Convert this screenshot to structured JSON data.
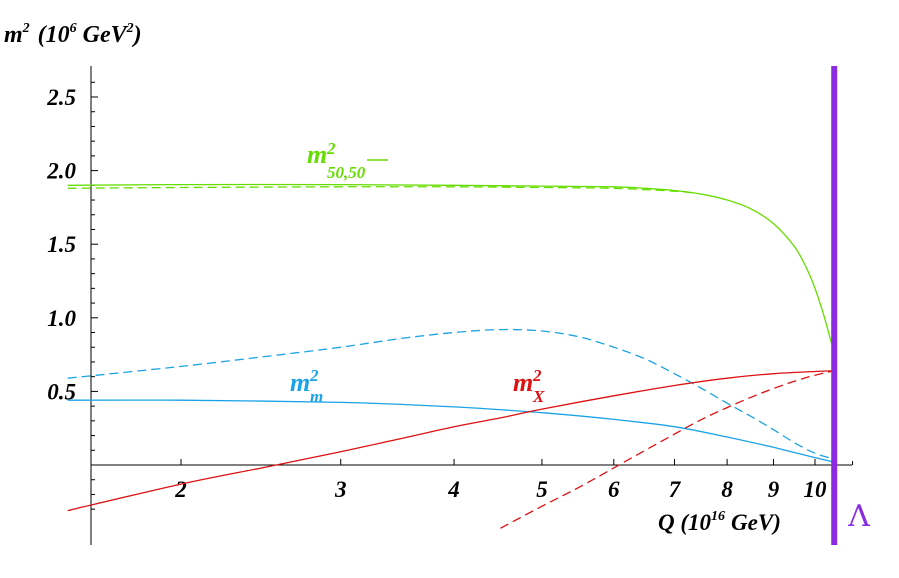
{
  "chart_data": {
    "type": "line",
    "title": "",
    "ylabel": {
      "base": "m",
      "sup": "2",
      "unit_open": "(10",
      "unit_exp": "6",
      "unit_mid": "GeV",
      "unit_exp2": "2",
      "unit_close": ")"
    },
    "xlabel": {
      "pre": "Q (10",
      "exp": "16",
      "post": "GeV)"
    },
    "x_scale": "log",
    "xlim": [
      1.5,
      11.2
    ],
    "ylim": [
      -0.33,
      2.7
    ],
    "x_ticks": [
      2,
      3,
      4,
      5,
      6,
      7,
      8,
      9,
      10
    ],
    "y_ticks": [
      "0.5",
      "1.0",
      "1.5",
      "2.0",
      "2.5"
    ],
    "y_tick_values": [
      0.5,
      1.0,
      1.5,
      2.0,
      2.5
    ],
    "cutoff": {
      "x": 10.5,
      "label": "Λ",
      "color": "#8a2be2"
    },
    "series": [
      {
        "id": "m50",
        "color": "#66dd00",
        "label": {
          "base": "m",
          "sup": "2",
          "sub": "50,",
          "sub_bar": "50"
        },
        "solid": [
          [
            1.5,
            1.9
          ],
          [
            2.0,
            1.905
          ],
          [
            3.0,
            1.905
          ],
          [
            4.0,
            1.9
          ],
          [
            5.0,
            1.895
          ],
          [
            6.0,
            1.89
          ],
          [
            6.5,
            1.88
          ],
          [
            7.0,
            1.865
          ],
          [
            7.5,
            1.84
          ],
          [
            8.0,
            1.8
          ],
          [
            8.5,
            1.74
          ],
          [
            9.0,
            1.64
          ],
          [
            9.5,
            1.48
          ],
          [
            9.8,
            1.33
          ],
          [
            10.0,
            1.2
          ],
          [
            10.2,
            1.04
          ],
          [
            10.35,
            0.9
          ],
          [
            10.5,
            0.76
          ]
        ],
        "dashed": [
          [
            1.5,
            1.88
          ],
          [
            2.0,
            1.885
          ],
          [
            3.0,
            1.89
          ],
          [
            4.0,
            1.89
          ],
          [
            5.0,
            1.885
          ],
          [
            6.0,
            1.88
          ],
          [
            7.0,
            1.86
          ],
          [
            7.3,
            1.85
          ]
        ]
      },
      {
        "id": "mm",
        "color": "#1aa3e6",
        "label": {
          "base": "m",
          "sup": "2",
          "sub": "m"
        },
        "solid": [
          [
            1.5,
            0.44
          ],
          [
            2.0,
            0.44
          ],
          [
            3.0,
            0.425
          ],
          [
            4.0,
            0.395
          ],
          [
            5.0,
            0.355
          ],
          [
            6.0,
            0.31
          ],
          [
            7.0,
            0.26
          ],
          [
            8.0,
            0.19
          ],
          [
            9.0,
            0.12
          ],
          [
            10.0,
            0.05
          ],
          [
            10.5,
            0.02
          ]
        ],
        "dashed": [
          [
            1.5,
            0.59
          ],
          [
            2.0,
            0.67
          ],
          [
            2.5,
            0.74
          ],
          [
            3.0,
            0.8
          ],
          [
            3.5,
            0.86
          ],
          [
            4.0,
            0.9
          ],
          [
            4.5,
            0.92
          ],
          [
            5.0,
            0.91
          ],
          [
            5.5,
            0.87
          ],
          [
            6.0,
            0.8
          ],
          [
            6.5,
            0.72
          ],
          [
            7.0,
            0.62
          ],
          [
            7.5,
            0.52
          ],
          [
            8.0,
            0.42
          ],
          [
            8.5,
            0.33
          ],
          [
            9.0,
            0.24
          ],
          [
            9.5,
            0.15
          ],
          [
            10.0,
            0.08
          ],
          [
            10.5,
            0.04
          ]
        ]
      },
      {
        "id": "mX",
        "color": "#dd1111",
        "label": {
          "base": "m",
          "sup": "2",
          "sub": "X"
        },
        "solid": [
          [
            1.5,
            -0.31
          ],
          [
            2.0,
            -0.13
          ],
          [
            2.5,
            -0.01
          ],
          [
            3.0,
            0.09
          ],
          [
            3.5,
            0.18
          ],
          [
            4.0,
            0.26
          ],
          [
            4.5,
            0.32
          ],
          [
            5.0,
            0.38
          ],
          [
            6.0,
            0.47
          ],
          [
            7.0,
            0.54
          ],
          [
            8.0,
            0.59
          ],
          [
            9.0,
            0.62
          ],
          [
            10.0,
            0.635
          ],
          [
            10.5,
            0.64
          ]
        ],
        "dashed": [
          [
            4.5,
            -0.43
          ],
          [
            5.0,
            -0.28
          ],
          [
            5.5,
            -0.15
          ],
          [
            6.0,
            -0.02
          ],
          [
            6.5,
            0.1
          ],
          [
            7.0,
            0.21
          ],
          [
            7.5,
            0.31
          ],
          [
            8.0,
            0.39
          ],
          [
            8.5,
            0.46
          ],
          [
            9.0,
            0.52
          ],
          [
            9.5,
            0.57
          ],
          [
            10.0,
            0.61
          ],
          [
            10.5,
            0.64
          ]
        ]
      }
    ]
  }
}
